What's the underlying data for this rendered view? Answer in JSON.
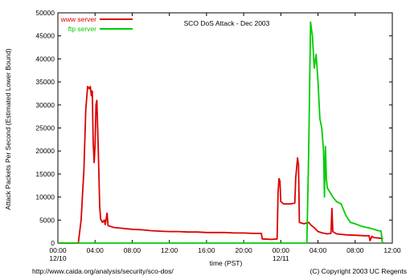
{
  "chart_data": {
    "type": "line",
    "title": "SCO DoS Attack - Dec 2003",
    "xlabel": "time (PST)",
    "ylabel": "Attack Packets Per Second (Estimated Lower Bound)",
    "xlim": [
      0,
      36
    ],
    "ylim": [
      0,
      50000
    ],
    "grid": false,
    "legend_position": "top-left",
    "x_ticks": [
      {
        "value": 0,
        "label": "00:00",
        "sublabel": "12/10"
      },
      {
        "value": 4,
        "label": "04:00"
      },
      {
        "value": 8,
        "label": "08:00"
      },
      {
        "value": 12,
        "label": "12:00"
      },
      {
        "value": 16,
        "label": "16:00"
      },
      {
        "value": 20,
        "label": "20:00"
      },
      {
        "value": 24,
        "label": "00:00",
        "sublabel": "12/11"
      },
      {
        "value": 28,
        "label": "04:00"
      },
      {
        "value": 32,
        "label": "08:00"
      },
      {
        "value": 36,
        "label": "12:00"
      }
    ],
    "y_ticks": [
      0,
      5000,
      10000,
      15000,
      20000,
      25000,
      30000,
      35000,
      40000,
      45000,
      50000
    ],
    "series": [
      {
        "name": "www server",
        "color": "#dd0000",
        "points": [
          [
            0,
            0
          ],
          [
            2.2,
            0
          ],
          [
            2.5,
            5000
          ],
          [
            2.8,
            16000
          ],
          [
            3,
            29000
          ],
          [
            3.2,
            34000
          ],
          [
            3.4,
            33500
          ],
          [
            3.5,
            34000
          ],
          [
            3.6,
            32000
          ],
          [
            3.7,
            33000
          ],
          [
            3.8,
            22000
          ],
          [
            3.9,
            17500
          ],
          [
            4,
            21000
          ],
          [
            4.1,
            30000
          ],
          [
            4.2,
            31000
          ],
          [
            4.35,
            20000
          ],
          [
            4.5,
            8000
          ],
          [
            4.6,
            5200
          ],
          [
            4.8,
            4500
          ],
          [
            5,
            5000
          ],
          [
            5.1,
            4000
          ],
          [
            5.3,
            6500
          ],
          [
            5.4,
            3800
          ],
          [
            6,
            3400
          ],
          [
            7,
            3200
          ],
          [
            8,
            3000
          ],
          [
            9,
            2900
          ],
          [
            10,
            2700
          ],
          [
            11,
            2600
          ],
          [
            12,
            2500
          ],
          [
            13,
            2500
          ],
          [
            14,
            2400
          ],
          [
            15,
            2400
          ],
          [
            16,
            2300
          ],
          [
            17,
            2300
          ],
          [
            18,
            2300
          ],
          [
            19,
            2200
          ],
          [
            20,
            2200
          ],
          [
            21,
            2100
          ],
          [
            21.9,
            2100
          ],
          [
            22,
            900
          ],
          [
            23,
            800
          ],
          [
            23.6,
            900
          ],
          [
            23.7,
            11000
          ],
          [
            23.8,
            14000
          ],
          [
            23.9,
            13500
          ],
          [
            24,
            9000
          ],
          [
            24.3,
            8500
          ],
          [
            25,
            8500
          ],
          [
            25.5,
            8700
          ],
          [
            25.6,
            14000
          ],
          [
            25.8,
            18500
          ],
          [
            25.9,
            17000
          ],
          [
            26,
            4500
          ],
          [
            26.5,
            4200
          ],
          [
            27,
            4500
          ],
          [
            27.3,
            3800
          ],
          [
            27.5,
            3500
          ],
          [
            28,
            2500
          ],
          [
            28.5,
            2200
          ],
          [
            29,
            2000
          ],
          [
            29.4,
            2100
          ],
          [
            29.5,
            7500
          ],
          [
            29.6,
            2500
          ],
          [
            30,
            2000
          ],
          [
            31,
            1800
          ],
          [
            32,
            1700
          ],
          [
            33,
            1600
          ],
          [
            33.5,
            1600
          ],
          [
            33.6,
            500
          ],
          [
            33.8,
            1500
          ],
          [
            34,
            1200
          ],
          [
            34.5,
            1100
          ],
          [
            35,
            1000
          ]
        ]
      },
      {
        "name": "ftp server",
        "color": "#00cc00",
        "points": [
          [
            0,
            0
          ],
          [
            26.8,
            0
          ],
          [
            27,
            20000
          ],
          [
            27.2,
            48000
          ],
          [
            27.4,
            45000
          ],
          [
            27.6,
            38000
          ],
          [
            27.8,
            41000
          ],
          [
            28,
            35000
          ],
          [
            28.2,
            27000
          ],
          [
            28.4,
            25000
          ],
          [
            28.6,
            20000
          ],
          [
            28.7,
            10000
          ],
          [
            28.8,
            21000
          ],
          [
            28.9,
            14000
          ],
          [
            29,
            12000
          ],
          [
            29.3,
            11000
          ],
          [
            29.6,
            10000
          ],
          [
            30,
            9000
          ],
          [
            30.5,
            8500
          ],
          [
            31,
            6000
          ],
          [
            31.5,
            4500
          ],
          [
            32,
            4200
          ],
          [
            32.5,
            3800
          ],
          [
            33,
            3500
          ],
          [
            33.5,
            3300
          ],
          [
            34,
            3000
          ],
          [
            34.5,
            2700
          ],
          [
            34.8,
            2600
          ],
          [
            34.9,
            400
          ],
          [
            35,
            0
          ]
        ]
      }
    ]
  },
  "footer": {
    "url": "http://www.caida.org/analysis/security/sco-dos/",
    "copyright": "(C) Copyright 2003 UC Regents"
  }
}
